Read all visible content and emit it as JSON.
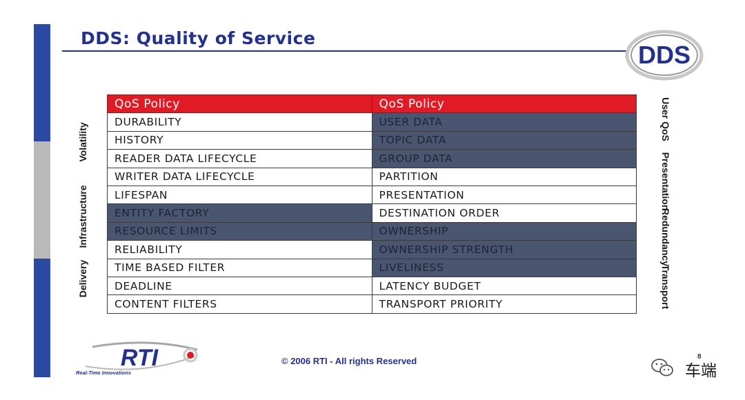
{
  "slide": {
    "title": "DDS:  Quality of Service",
    "logo_text": "DDS",
    "page_number": "8",
    "copyright": "© 2006 RTI - All rights Reserved",
    "rti_logo_text": "RTI",
    "rti_tagline": "Real-Time Innovations",
    "watermark_text": "车端"
  },
  "colors": {
    "bar_blue": "#2a49a3",
    "bar_gray": "#b9b9b9",
    "title_blue": "#23318e",
    "header_red": "#e01b26",
    "dark_cell": "#4a5570"
  },
  "table": {
    "headers": [
      "QoS Policy",
      "QoS Policy"
    ],
    "rows": [
      {
        "left": "DURABILITY",
        "left_dark": false,
        "right": "USER DATA",
        "right_dark": true
      },
      {
        "left": "HISTORY",
        "left_dark": false,
        "right": "TOPIC DATA",
        "right_dark": true
      },
      {
        "left": "READER DATA LIFECYCLE",
        "left_dark": false,
        "right": "GROUP DATA",
        "right_dark": true
      },
      {
        "left": "WRITER DATA LIFECYCLE",
        "left_dark": false,
        "right": "PARTITION",
        "right_dark": false
      },
      {
        "left": "LIFESPAN",
        "left_dark": false,
        "right": "PRESENTATION",
        "right_dark": false
      },
      {
        "left": "ENTITY FACTORY",
        "left_dark": true,
        "right": "DESTINATION ORDER",
        "right_dark": false
      },
      {
        "left": "RESOURCE LIMITS",
        "left_dark": true,
        "right": "OWNERSHIP",
        "right_dark": true
      },
      {
        "left": "RELIABILITY",
        "left_dark": false,
        "right": "OWNERSHIP STRENGTH",
        "right_dark": true
      },
      {
        "left": "TIME BASED FILTER",
        "left_dark": false,
        "right": "LIVELINESS",
        "right_dark": true
      },
      {
        "left": "DEADLINE",
        "left_dark": false,
        "right": "LATENCY BUDGET",
        "right_dark": false
      },
      {
        "left": "CONTENT FILTERS",
        "left_dark": false,
        "right": "TRANSPORT PRIORITY",
        "right_dark": false
      }
    ]
  },
  "left_labels": [
    "Volatility",
    "Infrastructure",
    "Delivery"
  ],
  "right_labels": [
    "User QoS",
    "Presentation",
    "Redundancy",
    "Transport"
  ],
  "icons": [
    "dds-logo-icon",
    "rti-logo-icon",
    "wechat-icon"
  ]
}
